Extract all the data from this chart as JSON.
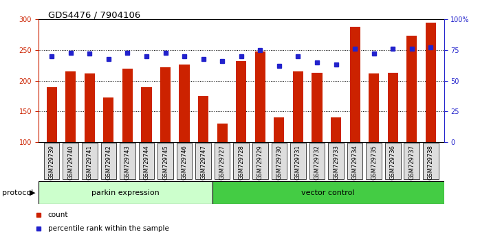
{
  "title": "GDS4476 / 7904106",
  "samples": [
    "GSM729739",
    "GSM729740",
    "GSM729741",
    "GSM729742",
    "GSM729743",
    "GSM729744",
    "GSM729745",
    "GSM729746",
    "GSM729747",
    "GSM729727",
    "GSM729728",
    "GSM729729",
    "GSM729730",
    "GSM729731",
    "GSM729732",
    "GSM729733",
    "GSM729734",
    "GSM729735",
    "GSM729736",
    "GSM729737",
    "GSM729738"
  ],
  "bar_values": [
    190,
    215,
    212,
    173,
    220,
    190,
    222,
    226,
    175,
    130,
    232,
    248,
    140,
    215,
    213,
    140,
    288,
    212,
    213,
    273,
    295
  ],
  "percentile_values": [
    70,
    73,
    72,
    68,
    73,
    70,
    73,
    70,
    68,
    66,
    70,
    75,
    62,
    70,
    65,
    63,
    76,
    72,
    76,
    76,
    77
  ],
  "group1_label": "parkin expression",
  "group2_label": "vector control",
  "group1_count": 9,
  "group2_count": 12,
  "bar_color": "#CC2200",
  "percentile_color": "#2222CC",
  "group1_bg": "#CCFFCC",
  "group2_bg": "#44CC44",
  "ylim_left": [
    100,
    300
  ],
  "ylim_right": [
    0,
    100
  ],
  "yticks_left": [
    100,
    150,
    200,
    250,
    300
  ],
  "yticks_right": [
    0,
    25,
    50,
    75,
    100
  ],
  "grid_lines": [
    150,
    200,
    250
  ],
  "legend_count_label": "count",
  "legend_pct_label": "percentile rank within the sample",
  "xlabel_protocol": "protocol",
  "bg_color": "#FFFFFF",
  "ticklabel_bg": "#DDDDDD",
  "bar_bottom": 100
}
